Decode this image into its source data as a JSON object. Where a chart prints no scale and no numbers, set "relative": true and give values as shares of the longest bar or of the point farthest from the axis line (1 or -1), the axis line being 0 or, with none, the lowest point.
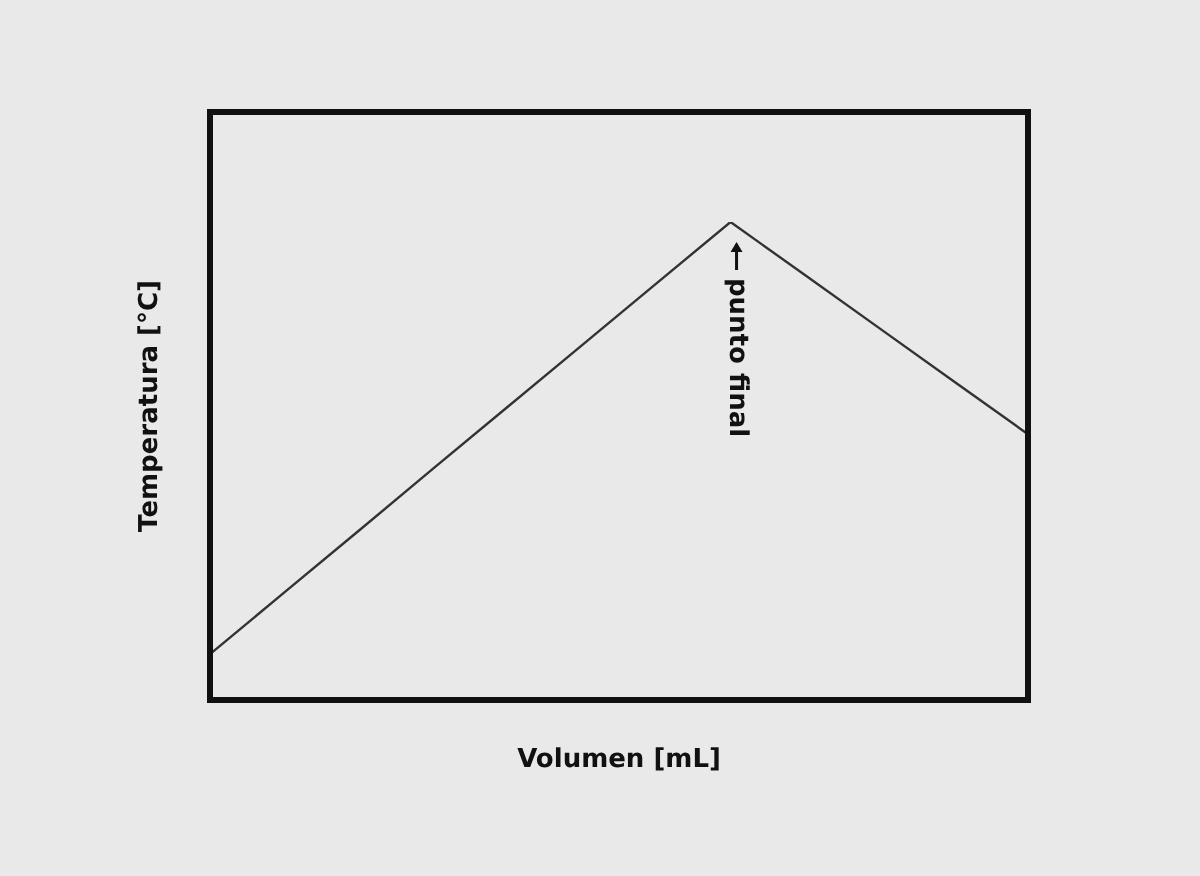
{
  "chart_data": {
    "type": "line",
    "relative": true,
    "xlabel": "Volumen [mL]",
    "ylabel": "Temperatura [°C]",
    "color": "#333333",
    "categories": [
      null,
      null,
      null,
      null,
      null,
      null,
      null,
      null,
      null,
      null,
      null,
      null
    ],
    "values": [
      0.096,
      0.225,
      0.354,
      0.484,
      0.613,
      0.742,
      0.871,
      1,
      0.889,
      0.778,
      0.667,
      0.556
    ],
    "annotations": [
      "punto final"
    ]
  }
}
